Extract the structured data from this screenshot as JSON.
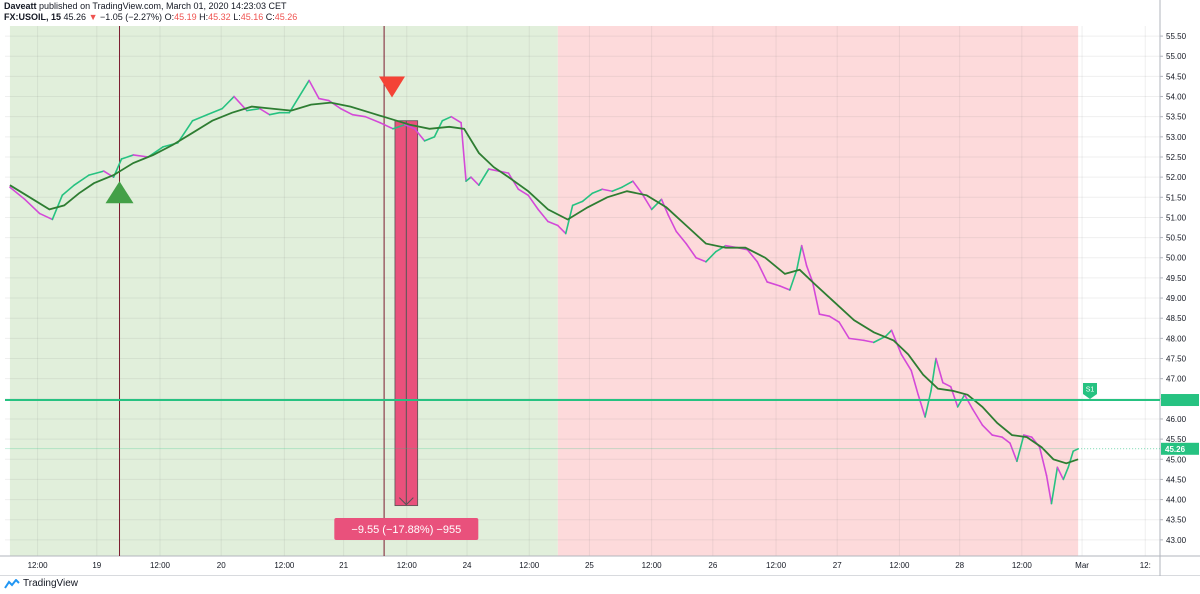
{
  "header": {
    "author": "Daveatt",
    "published": "published on TradingView.com, March 01, 2020 14:23:03 CET",
    "symbol": "FX:USOIL, 15",
    "last": "45.26",
    "change": "−1.05 (−2.27%)",
    "o_label": "O:",
    "o_value": "45.19",
    "h_label": "H:",
    "h_value": "45.32",
    "l_label": "L:",
    "l_value": "45.16",
    "c_label": "C:",
    "c_value": "45.26"
  },
  "footer": {
    "brand": "TradingView"
  },
  "colors": {
    "bull": "#26c281",
    "bear": "#d449d8",
    "ma": "#2e7d32",
    "green_zone": "#e1efdb",
    "red_zone": "#fddadb",
    "trade_bar": "#e9517c",
    "buy_marker": "#43a047",
    "sell_marker": "#f44336",
    "level_line": "#26c281",
    "vline": "#7b1a2e"
  },
  "chart_data": {
    "type": "line",
    "title": "",
    "ylim": [
      42.6,
      55.75
    ],
    "xlim": [
      0,
      1175
    ],
    "y_ticks": [
      "43.00",
      "43.50",
      "44.00",
      "44.50",
      "45.00",
      "45.50",
      "46.00",
      "46.50",
      "47.00",
      "47.50",
      "48.00",
      "48.50",
      "49.00",
      "49.50",
      "50.00",
      "50.50",
      "51.00",
      "51.50",
      "52.00",
      "52.50",
      "53.00",
      "53.50",
      "54.00",
      "54.50",
      "55.00",
      "55.50"
    ],
    "x_ticks": [
      {
        "x": 33,
        "label": "12:00"
      },
      {
        "x": 93,
        "label": "19"
      },
      {
        "x": 157,
        "label": "12:00"
      },
      {
        "x": 219,
        "label": "20"
      },
      {
        "x": 283,
        "label": "12:00"
      },
      {
        "x": 343,
        "label": "21"
      },
      {
        "x": 407,
        "label": "12:00"
      },
      {
        "x": 468,
        "label": "24"
      },
      {
        "x": 531,
        "label": "12:00"
      },
      {
        "x": 592,
        "label": "25"
      },
      {
        "x": 655,
        "label": "12:00"
      },
      {
        "x": 717,
        "label": "26"
      },
      {
        "x": 781,
        "label": "12:00"
      },
      {
        "x": 843,
        "label": "27"
      },
      {
        "x": 906,
        "label": "12:00"
      },
      {
        "x": 967,
        "label": "28"
      },
      {
        "x": 1030,
        "label": "12:00"
      },
      {
        "x": 1091,
        "label": "Mar"
      },
      {
        "x": 1155,
        "label": "12:"
      }
    ],
    "price_series": [
      [
        5,
        51.75
      ],
      [
        20,
        51.45
      ],
      [
        35,
        51.1
      ],
      [
        48,
        50.95
      ],
      [
        58,
        51.55
      ],
      [
        70,
        51.8
      ],
      [
        85,
        52.05
      ],
      [
        100,
        52.15
      ],
      [
        110,
        52.0
      ],
      [
        118,
        52.45
      ],
      [
        130,
        52.55
      ],
      [
        145,
        52.5
      ],
      [
        160,
        52.75
      ],
      [
        175,
        52.85
      ],
      [
        190,
        53.4
      ],
      [
        205,
        53.55
      ],
      [
        220,
        53.7
      ],
      [
        232,
        54.0
      ],
      [
        245,
        53.65
      ],
      [
        258,
        53.7
      ],
      [
        268,
        53.55
      ],
      [
        278,
        53.6
      ],
      [
        288,
        53.6
      ],
      [
        298,
        54.0
      ],
      [
        308,
        54.4
      ],
      [
        318,
        53.95
      ],
      [
        328,
        53.9
      ],
      [
        340,
        53.7
      ],
      [
        352,
        53.55
      ],
      [
        365,
        53.5
      ],
      [
        380,
        53.35
      ],
      [
        393,
        53.2
      ],
      [
        405,
        53.3
      ],
      [
        415,
        53.2
      ],
      [
        425,
        52.9
      ],
      [
        435,
        53.0
      ],
      [
        443,
        53.4
      ],
      [
        452,
        53.5
      ],
      [
        462,
        53.35
      ],
      [
        467,
        51.9
      ],
      [
        472,
        52.0
      ],
      [
        480,
        51.8
      ],
      [
        490,
        52.2
      ],
      [
        500,
        52.15
      ],
      [
        510,
        52.1
      ],
      [
        520,
        51.7
      ],
      [
        530,
        51.55
      ],
      [
        540,
        51.2
      ],
      [
        550,
        50.9
      ],
      [
        560,
        50.8
      ],
      [
        568,
        50.6
      ],
      [
        575,
        51.3
      ],
      [
        585,
        51.4
      ],
      [
        595,
        51.6
      ],
      [
        605,
        51.7
      ],
      [
        615,
        51.65
      ],
      [
        625,
        51.75
      ],
      [
        636,
        51.9
      ],
      [
        645,
        51.6
      ],
      [
        655,
        51.2
      ],
      [
        665,
        51.45
      ],
      [
        672,
        51.05
      ],
      [
        680,
        50.65
      ],
      [
        690,
        50.35
      ],
      [
        700,
        50.0
      ],
      [
        710,
        49.9
      ],
      [
        720,
        50.15
      ],
      [
        730,
        50.3
      ],
      [
        742,
        50.25
      ],
      [
        752,
        50.2
      ],
      [
        762,
        49.9
      ],
      [
        772,
        49.4
      ],
      [
        785,
        49.3
      ],
      [
        795,
        49.2
      ],
      [
        802,
        49.7
      ],
      [
        807,
        50.3
      ],
      [
        812,
        49.8
      ],
      [
        818,
        49.4
      ],
      [
        825,
        48.6
      ],
      [
        835,
        48.55
      ],
      [
        845,
        48.4
      ],
      [
        855,
        48.0
      ],
      [
        870,
        47.95
      ],
      [
        880,
        47.9
      ],
      [
        892,
        48.05
      ],
      [
        898,
        48.2
      ],
      [
        908,
        47.6
      ],
      [
        918,
        47.2
      ],
      [
        925,
        46.6
      ],
      [
        932,
        46.05
      ],
      [
        938,
        46.7
      ],
      [
        943,
        47.5
      ],
      [
        950,
        46.9
      ],
      [
        958,
        46.8
      ],
      [
        965,
        46.3
      ],
      [
        972,
        46.6
      ],
      [
        980,
        46.25
      ],
      [
        990,
        45.85
      ],
      [
        1000,
        45.6
      ],
      [
        1010,
        45.55
      ],
      [
        1018,
        45.4
      ],
      [
        1025,
        44.95
      ],
      [
        1032,
        45.6
      ],
      [
        1040,
        45.55
      ],
      [
        1048,
        45.3
      ],
      [
        1055,
        44.6
      ],
      [
        1060,
        43.9
      ],
      [
        1066,
        44.8
      ],
      [
        1072,
        44.5
      ],
      [
        1077,
        44.8
      ],
      [
        1082,
        45.2
      ],
      [
        1087,
        45.26
      ]
    ],
    "ma_series": [
      [
        5,
        51.8
      ],
      [
        25,
        51.5
      ],
      [
        45,
        51.2
      ],
      [
        60,
        51.3
      ],
      [
        75,
        51.6
      ],
      [
        90,
        51.85
      ],
      [
        110,
        52.05
      ],
      [
        130,
        52.35
      ],
      [
        150,
        52.55
      ],
      [
        170,
        52.8
      ],
      [
        190,
        53.1
      ],
      [
        210,
        53.4
      ],
      [
        230,
        53.6
      ],
      [
        250,
        53.75
      ],
      [
        270,
        53.7
      ],
      [
        290,
        53.65
      ],
      [
        310,
        53.8
      ],
      [
        330,
        53.85
      ],
      [
        350,
        53.75
      ],
      [
        370,
        53.6
      ],
      [
        390,
        53.45
      ],
      [
        410,
        53.3
      ],
      [
        430,
        53.2
      ],
      [
        450,
        53.25
      ],
      [
        465,
        53.2
      ],
      [
        480,
        52.6
      ],
      [
        495,
        52.25
      ],
      [
        510,
        52.0
      ],
      [
        530,
        51.65
      ],
      [
        550,
        51.2
      ],
      [
        570,
        50.95
      ],
      [
        590,
        51.25
      ],
      [
        610,
        51.5
      ],
      [
        630,
        51.65
      ],
      [
        650,
        51.55
      ],
      [
        670,
        51.25
      ],
      [
        690,
        50.8
      ],
      [
        710,
        50.35
      ],
      [
        730,
        50.25
      ],
      [
        750,
        50.25
      ],
      [
        770,
        50.0
      ],
      [
        790,
        49.6
      ],
      [
        805,
        49.7
      ],
      [
        820,
        49.35
      ],
      [
        840,
        48.9
      ],
      [
        860,
        48.45
      ],
      [
        880,
        48.15
      ],
      [
        900,
        47.95
      ],
      [
        915,
        47.6
      ],
      [
        930,
        47.1
      ],
      [
        945,
        46.75
      ],
      [
        960,
        46.7
      ],
      [
        975,
        46.6
      ],
      [
        990,
        46.3
      ],
      [
        1005,
        45.9
      ],
      [
        1020,
        45.6
      ],
      [
        1035,
        45.55
      ],
      [
        1050,
        45.3
      ],
      [
        1062,
        45.0
      ],
      [
        1075,
        44.9
      ],
      [
        1087,
        45.0
      ]
    ],
    "zones": [
      {
        "type": "green",
        "x_start": 5,
        "x_end": 560
      },
      {
        "type": "red",
        "x_start": 560,
        "x_end": 1087
      }
    ],
    "vertical_lines": [
      116,
      384
    ],
    "signals": [
      {
        "type": "buy",
        "x": 116,
        "y": 51.6
      },
      {
        "type": "sell",
        "x": 392,
        "y": 54.2
      }
    ],
    "trade": {
      "x_start": 395,
      "x_end": 418,
      "y_top": 53.4,
      "y_bottom": 43.85,
      "label": "−9.55 (−17.88%) −955"
    },
    "level_line": {
      "y": 46.47,
      "label": "S1"
    },
    "last_price": {
      "y": 45.26,
      "label": "45.26"
    }
  }
}
